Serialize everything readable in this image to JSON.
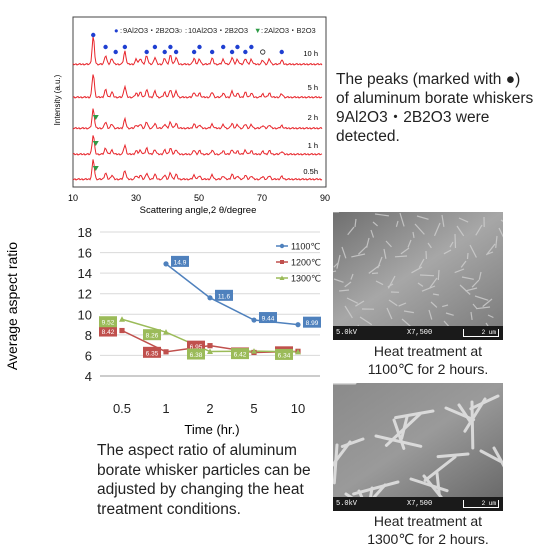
{
  "xrd_legend": {
    "dot": "9Al2O3・2B2O3",
    "circle": "10Al2O3・2B2O3",
    "triangle": "2Al2O3・B2O3",
    "dot_mark": "●",
    "circle_mark": "○",
    "triangle_mark": "▼",
    "sep1": ":",
    "sep2": ":",
    "sep3": ":"
  },
  "xrd_traces": [
    "10 h",
    "5 h",
    "2 h",
    "1 h",
    "0.5h"
  ],
  "xrd_xaxis": {
    "ticks": [
      "10",
      "30",
      "50",
      "70",
      "90"
    ],
    "label": "Scattering angle,2 θ/degree"
  },
  "xrd_ylabel": "Intensity (a.u.)",
  "xrd_note": "The peaks (marked with ●) of aluminum borate whiskers 9Al2O3・2B2O3 were detected.",
  "chart_data": {
    "type": "line",
    "categories": [
      "0.5",
      "1",
      "2",
      "5",
      "10"
    ],
    "series": [
      {
        "name": "1100℃",
        "values": [
          null,
          14.9,
          11.6,
          9.44,
          8.99
        ],
        "labels": [
          "",
          "14.9",
          "11.6",
          "9.44",
          "8.99"
        ],
        "color": "#4f81bd"
      },
      {
        "name": "1200℃",
        "values": [
          8.42,
          6.35,
          6.95,
          6.29,
          6.4
        ],
        "labels": [
          "8.42",
          "6.35",
          "6.95",
          "6.29",
          "6.40"
        ],
        "color": "#c0504d"
      },
      {
        "name": "1300℃",
        "values": [
          9.52,
          8.26,
          6.38,
          6.42,
          6.34
        ],
        "labels": [
          "9.52",
          "8.26",
          "6.38",
          "6.42",
          "6.34"
        ],
        "color": "#9bbb59"
      }
    ],
    "xlabel": "Time (hr.)",
    "ylabel": "Average aspect ratio",
    "ylim": [
      4,
      18
    ],
    "yticks": [
      "4",
      "6",
      "8",
      "10",
      "12",
      "14",
      "16",
      "18"
    ],
    "grid": true,
    "legend": "top-right"
  },
  "aspect_note": "The aspect ratio of aluminum borate whisker particles can be adjusted by changing the heat treatment conditions.",
  "sem": [
    {
      "voltage": "5.0kV",
      "mag": "X7,500",
      "scale": "2 um",
      "caption_1": "Heat treatment at",
      "caption_2": "1100℃ for 2 hours."
    },
    {
      "voltage": "5.0kV",
      "mag": "X7,500",
      "scale": "2 um",
      "caption_1": "Heat treatment at",
      "caption_2": "1300℃ for 2 hours."
    }
  ],
  "colors": {
    "trace": "#e8252b",
    "dot": "#1f3fd1",
    "triangle": "#2e9b46"
  }
}
